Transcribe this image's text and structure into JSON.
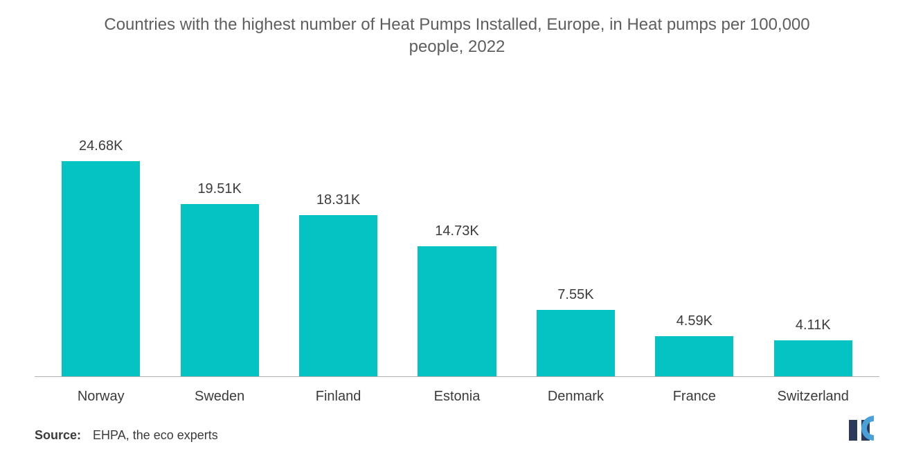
{
  "chart": {
    "type": "bar",
    "title": "Countries with the highest number of Heat Pumps Installed, Europe, in Heat pumps per 100,000 people, 2022",
    "title_fontsize": 24,
    "title_color": "#5e5e5e",
    "background_color": "#ffffff",
    "axis_color": "#b0b0b0",
    "y_max": 27,
    "bar_width_pct": 66,
    "value_fontsize": 20,
    "value_color": "#3b3b3b",
    "category_fontsize": 20,
    "category_color": "#3b3b3b",
    "bars": [
      {
        "category": "Norway",
        "value": 24.68,
        "label": "24.68K",
        "color": "#06c3c3"
      },
      {
        "category": "Sweden",
        "value": 19.51,
        "label": "19.51K",
        "color": "#06c3c3"
      },
      {
        "category": "Finland",
        "value": 18.31,
        "label": "18.31K",
        "color": "#06c3c3"
      },
      {
        "category": "Estonia",
        "value": 14.73,
        "label": "14.73K",
        "color": "#06c3c3"
      },
      {
        "category": "Denmark",
        "value": 7.55,
        "label": "7.55K",
        "color": "#06c3c3"
      },
      {
        "category": "France",
        "value": 4.59,
        "label": "4.59K",
        "color": "#06c3c3"
      },
      {
        "category": "Switzerland",
        "value": 4.11,
        "label": "4.11K",
        "color": "#06c3c3"
      }
    ]
  },
  "source": {
    "label": "Source:",
    "text": "EHPA, the eco experts"
  },
  "logo": {
    "name": "mi-logo",
    "colors": {
      "bar1": "#2b3a5b",
      "bar2": "#2b3a5b",
      "arc": "#4aa0d8"
    }
  }
}
